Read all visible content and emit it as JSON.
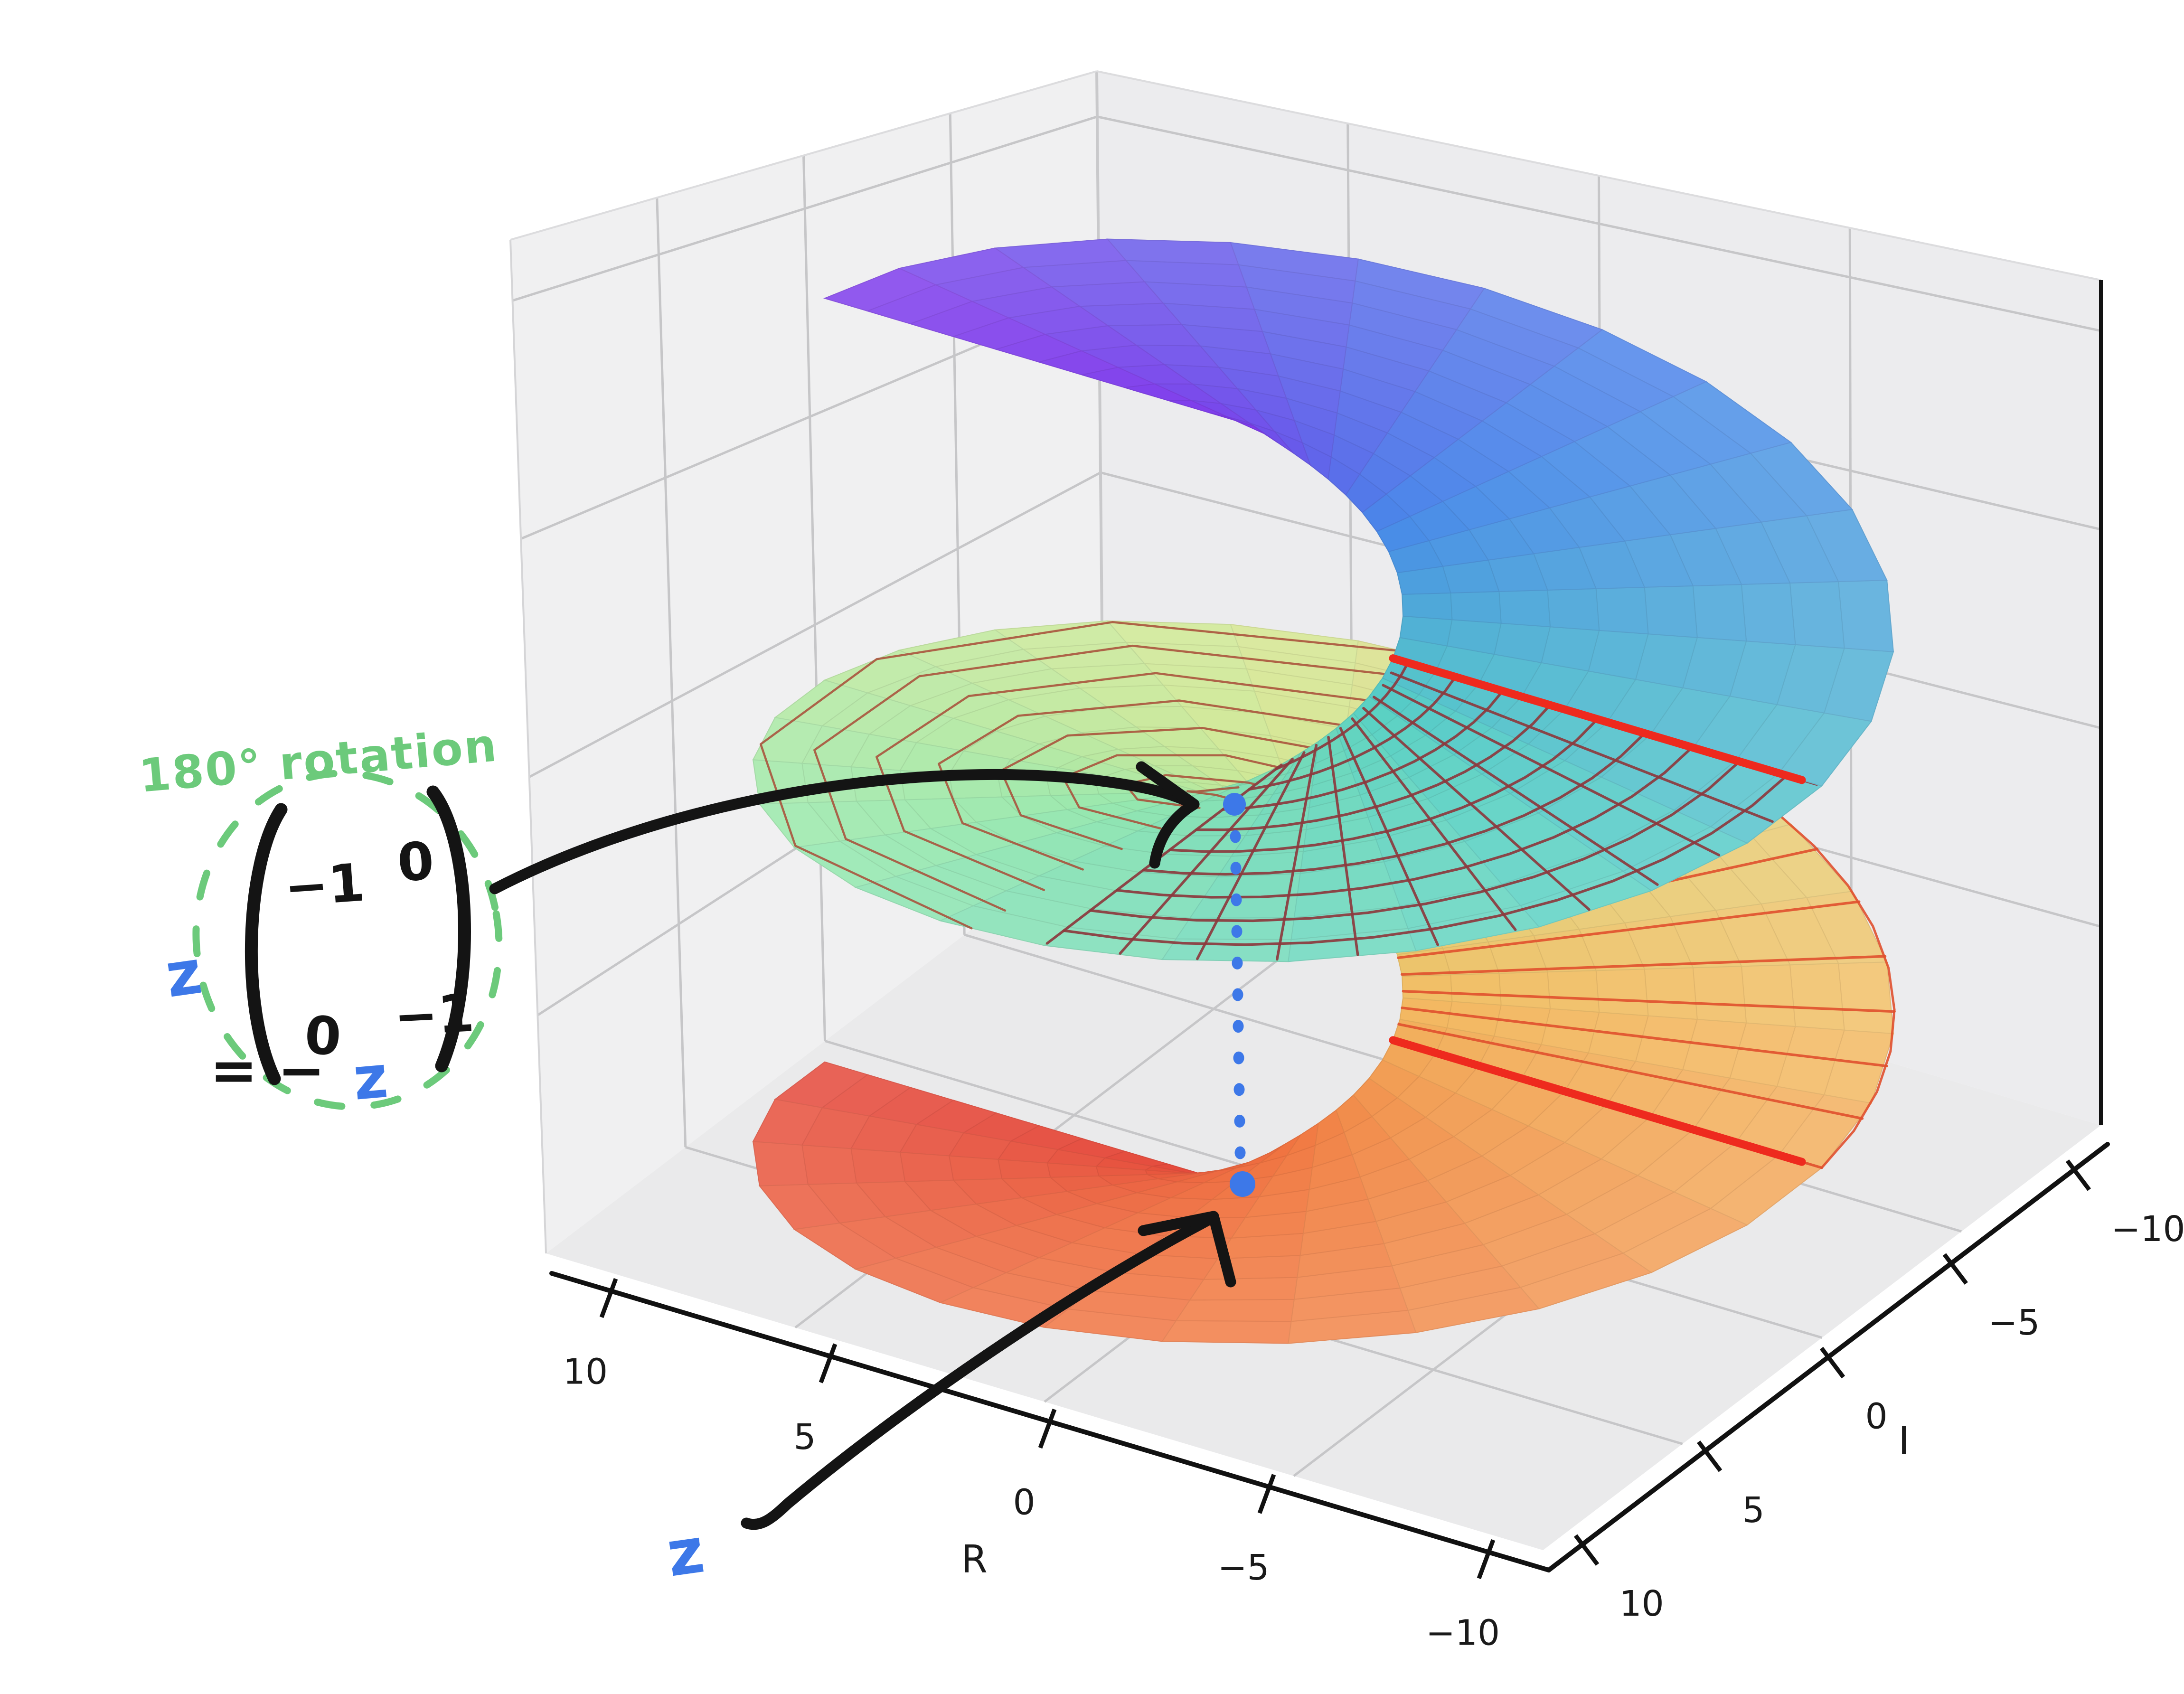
{
  "figure": {
    "background": "#ffffff",
    "pane_left": "#f0f0f1",
    "pane_right": "#ececee",
    "pane_floor": "#eaeaeb",
    "grid_line": "#c6c6c8",
    "axis_line": "#111111"
  },
  "axes": {
    "r_axis": {
      "label": "R",
      "ticks": [
        "10",
        "5",
        "0",
        "−5",
        "−10"
      ]
    },
    "i_axis": {
      "label": "I",
      "ticks": [
        "10",
        "5",
        "0",
        "−5",
        "−10"
      ]
    }
  },
  "annotations": {
    "rotation_title": "180° rotation",
    "matrix": {
      "prefix": "z",
      "entries": [
        "−1",
        "0",
        "0",
        "−1"
      ]
    },
    "equals_prefix": "= −",
    "equals_z": "z",
    "point_label": "z",
    "ink_green": "#6cca7b",
    "ink_blue": "#3d78e8",
    "ink_black": "#141414"
  },
  "surface_style": {
    "cut_red": "#ee2a1e",
    "ring_line": "#a8503a",
    "mesh_line": "#8c3a3e",
    "spoke_line": "#e0502e",
    "colormap": [
      "#e23b2e",
      "#f07038",
      "#f2b95c",
      "#cfe68c",
      "#8fe6a6",
      "#4fcdc2",
      "#3f83e8",
      "#7a2cea"
    ]
  },
  "chart_data": {
    "type": "surface",
    "title": "",
    "xlabel": "R",
    "ylabel": "I",
    "x_range": [
      -10,
      10
    ],
    "y_range": [
      -10,
      10
    ],
    "x_ticks": [
      10,
      5,
      0,
      -5,
      -10
    ],
    "y_ticks": [
      10,
      5,
      0,
      -5,
      -10
    ],
    "surface": "Riemann-surface helicoid: points z = r·e^{iθ} plotted with height proportional to θ, two full turns shown (spiral staircase)",
    "theta_range_rad": [
      -6.2832,
      6.2832
    ],
    "radius_range": [
      1.4,
      10
    ],
    "colormap_low_to_high": [
      "red",
      "orange",
      "yellow",
      "yellow-green",
      "green",
      "teal",
      "blue",
      "purple"
    ],
    "branch_cut_lines_theta_rad": [
      3.1416,
      -3.1416
    ],
    "marked_points": [
      {
        "label": "z",
        "location": "lower (orange) sheet"
      },
      {
        "label": "−z",
        "location": "middle (green) sheet, directly above z, reached by 180° rotation"
      }
    ],
    "annotation_text": [
      "180° rotation",
      "z(−1 0; 0 −1)",
      "= −z",
      "z"
    ],
    "legend": "none",
    "grid": true
  }
}
